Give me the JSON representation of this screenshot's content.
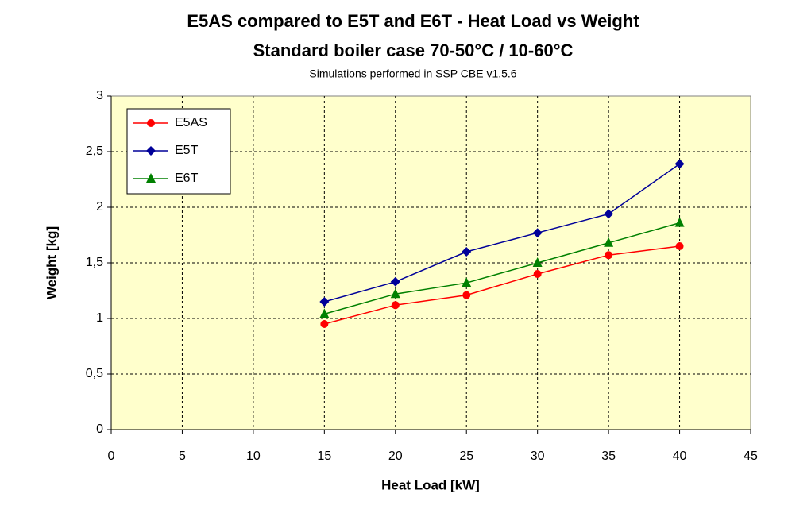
{
  "chart_data": {
    "type": "line",
    "title": "E5AS compared to E5T and E6T - Heat Load vs Weight",
    "subtitle": "Standard boiler case 70-50°C / 10-60°C",
    "note": "Simulations performed in SSP CBE v1.5.6",
    "x_label": "Heat Load [kW]",
    "y_label": "Weight [kg]",
    "x": [
      15,
      20,
      25,
      30,
      35,
      40
    ],
    "series": [
      {
        "name": "E5AS",
        "color": "#ff0000",
        "marker": "circle",
        "values": [
          0.95,
          1.12,
          1.21,
          1.4,
          1.57,
          1.65
        ]
      },
      {
        "name": "E5T",
        "color": "#000099",
        "marker": "diamond",
        "values": [
          1.15,
          1.33,
          1.6,
          1.77,
          1.94,
          2.39
        ]
      },
      {
        "name": "E6T",
        "color": "#008000",
        "marker": "triangle",
        "values": [
          1.04,
          1.22,
          1.32,
          1.5,
          1.68,
          1.86
        ]
      }
    ],
    "xlim": [
      0,
      45
    ],
    "xticks": [
      0,
      5,
      10,
      15,
      20,
      25,
      30,
      35,
      40,
      45
    ],
    "ylim": [
      0,
      3
    ],
    "yticks": [
      0,
      {
        "value": 0.5,
        "label": "0,5"
      },
      1,
      {
        "value": 1.5,
        "label": "1,5"
      },
      2,
      {
        "value": 2.5,
        "label": "2,5"
      },
      3
    ],
    "grid": true,
    "legend": "top-left",
    "background": "#ffffcc"
  }
}
